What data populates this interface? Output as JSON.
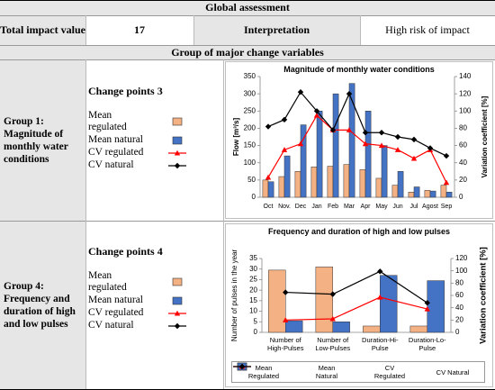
{
  "global_assessment": {
    "title": "Global assessment",
    "total_impact_label": "Total impact value",
    "total_impact_value": 17,
    "interpretation_label": "Interpretation",
    "interpretation": "High risk of impact"
  },
  "groups_header": "Group of major change variables",
  "groups": [
    {
      "name": "Group 1: Magnitude of monthly water conditions",
      "change_points": "Change points 3",
      "legend": [
        "Mean regulated",
        "Mean natural",
        "CV regulated",
        "CV natural"
      ],
      "chart": {
        "type": "bar",
        "title": "Magnitude of monthly water conditions",
        "ylabel": "Flow [m³/s]",
        "y2label": "Variation coefficient [%]",
        "categories": [
          "Oct",
          "Nov.",
          "Dec",
          "Jan",
          "Feb",
          "Mar",
          "Apr",
          "May",
          "Jun",
          "Jul",
          "Agost",
          "Sep"
        ],
        "ylim": [
          0,
          350
        ],
        "yticks": [
          0,
          50,
          100,
          150,
          200,
          250,
          300,
          350
        ],
        "y2lim": [
          0,
          140
        ],
        "y2ticks": [
          0,
          20,
          40,
          60,
          80,
          100,
          120,
          140
        ],
        "grid": false,
        "series": [
          {
            "type": "bar",
            "color": "#f4b183",
            "values": [
              50,
              60,
              75,
              88,
              90,
              95,
              80,
              55,
              35,
              15,
              20,
              35
            ]
          },
          {
            "type": "bar",
            "color": "#4472c4",
            "values": [
              45,
              120,
              210,
              250,
              300,
              330,
              250,
              150,
              75,
              30,
              18,
              15
            ]
          },
          {
            "type": "line",
            "axis": "y2",
            "marker": "triangle",
            "color": "#ff0000",
            "values": [
              23,
              55,
              62,
              95,
              78,
              78,
              62,
              60,
              55,
              45,
              55,
              17
            ]
          },
          {
            "type": "line",
            "axis": "y2",
            "marker": "diamond",
            "color": "#000000",
            "values": [
              82,
              90,
              122,
              100,
              78,
              120,
              75,
              75,
              70,
              67,
              57,
              48
            ]
          }
        ]
      }
    },
    {
      "name": "Group 4: Frequency and duration of high and low pulses",
      "change_points": "Change points 4",
      "legend": [
        "Mean regulated",
        "Mean natural",
        "CV regulated",
        "CV natural"
      ],
      "chart": {
        "type": "bar",
        "title": "Frequency and duration of high and low pulses",
        "ylabel": "Number of pulses in the year",
        "y2label": "Variation coefficient [%]",
        "categories": [
          "Number of High-Pulses",
          "Number of Low-Pulses",
          "Duration-Hi-Pulse",
          "Duration-Lo-Pulse"
        ],
        "ylim": [
          0,
          35
        ],
        "yticks": [
          0,
          5,
          10,
          15,
          20,
          25,
          30,
          35
        ],
        "y2lim": [
          0,
          120
        ],
        "y2ticks": [
          0,
          20,
          40,
          60,
          80,
          100,
          120
        ],
        "grid": false,
        "legend": "bottom",
        "series": [
          {
            "name": "Mean Regulated",
            "type": "bar",
            "color": "#f4b183",
            "values": [
              29.5,
              31,
              3,
              3
            ]
          },
          {
            "name": "Mean Natural",
            "type": "bar",
            "color": "#4472c4",
            "values": [
              5.5,
              5,
              27,
              24.5
            ]
          },
          {
            "name": "CV Regulated",
            "type": "line",
            "axis": "y2",
            "marker": "triangle",
            "color": "#ff0000",
            "values": [
              20,
              22,
              57,
              38
            ]
          },
          {
            "name": "CV Natural",
            "type": "line",
            "axis": "y2",
            "marker": "diamond",
            "color": "#000000",
            "values": [
              65,
              62,
              99,
              48
            ]
          }
        ]
      }
    }
  ]
}
